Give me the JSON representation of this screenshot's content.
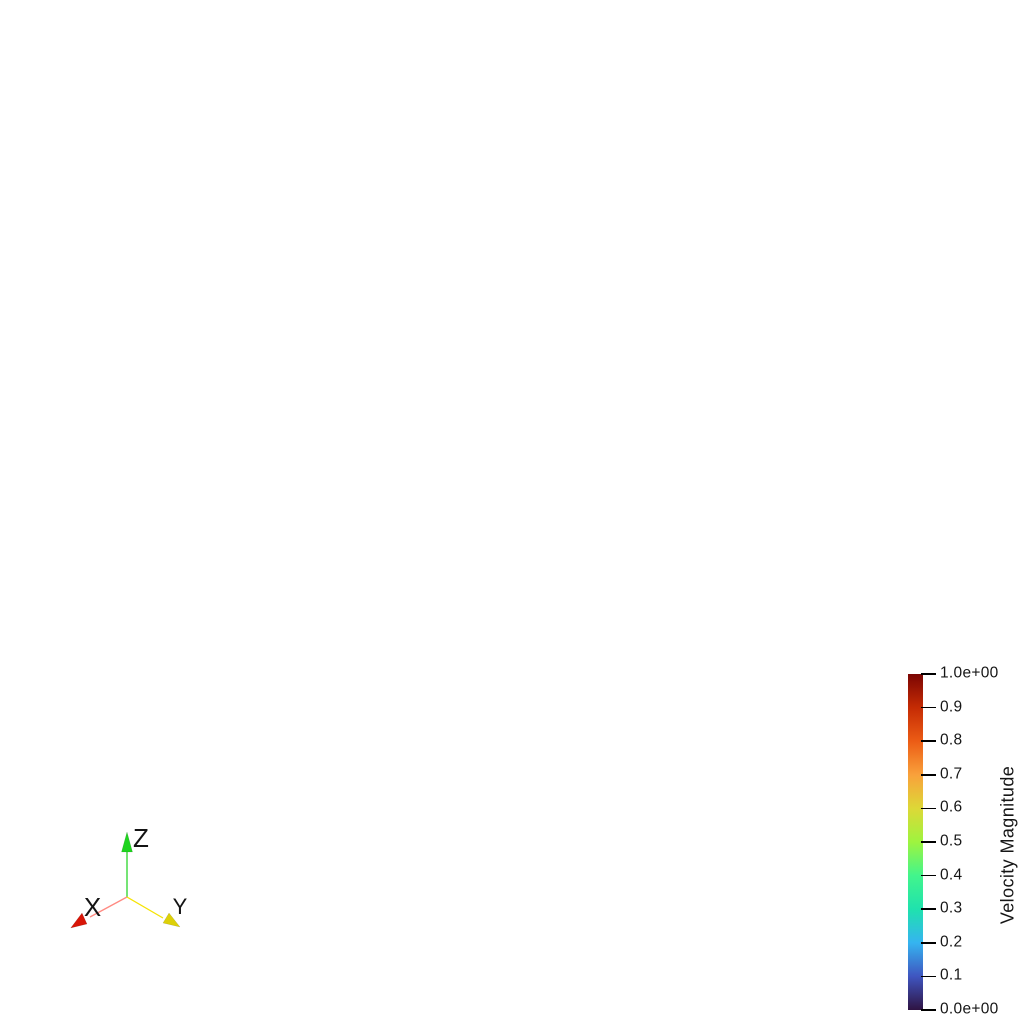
{
  "background_color": "#ffffff",
  "orientation_axes": {
    "x_label": "X",
    "y_label": "Y",
    "z_label": "Z",
    "label_color": "#141414",
    "x_line_color": "#ff8a82",
    "y_line_color": "#f5e303",
    "z_line_color": "#2bd62b",
    "x_cone_color": "#d81507",
    "y_cone_color": "#ddd008",
    "z_cone_color": "#1fd41f"
  },
  "chart_data": {
    "type": "colorbar",
    "title": "Velocity Magnitude",
    "orientation": "vertical",
    "range_min": 0.0,
    "range_max": 1.0,
    "colormap": "turbo",
    "tick_color": "#000000",
    "text_color": "#161616",
    "ticks": [
      {
        "value": 1.0,
        "label": "1.0e+00"
      },
      {
        "value": 0.9,
        "label": "0.9"
      },
      {
        "value": 0.8,
        "label": "0.8"
      },
      {
        "value": 0.7,
        "label": "0.7"
      },
      {
        "value": 0.6,
        "label": "0.6"
      },
      {
        "value": 0.5,
        "label": "0.5"
      },
      {
        "value": 0.4,
        "label": "0.4"
      },
      {
        "value": 0.3,
        "label": "0.3"
      },
      {
        "value": 0.2,
        "label": "0.2"
      },
      {
        "value": 0.1,
        "label": "0.1"
      },
      {
        "value": 0.0,
        "label": "0.0e+00"
      }
    ],
    "gradient_stops": [
      {
        "value": 1.0,
        "color": "#7b0503"
      },
      {
        "value": 0.9,
        "color": "#c52b04"
      },
      {
        "value": 0.8,
        "color": "#ec5c15"
      },
      {
        "value": 0.7,
        "color": "#f9a13b"
      },
      {
        "value": 0.6,
        "color": "#ddd837"
      },
      {
        "value": 0.5,
        "color": "#9ef43f"
      },
      {
        "value": 0.4,
        "color": "#42f58c"
      },
      {
        "value": 0.3,
        "color": "#1fe2ae"
      },
      {
        "value": 0.2,
        "color": "#35b4f0"
      },
      {
        "value": 0.1,
        "color": "#3f55c0"
      },
      {
        "value": 0.0,
        "color": "#2f1342"
      }
    ]
  }
}
